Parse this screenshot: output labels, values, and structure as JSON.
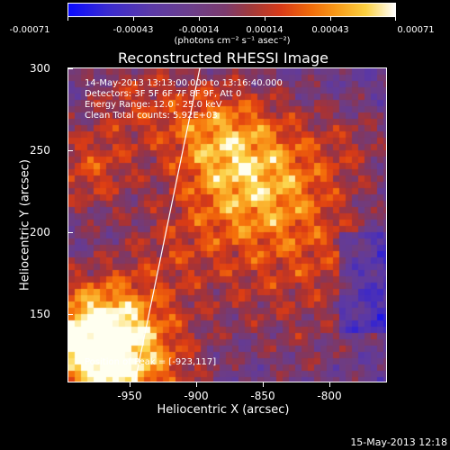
{
  "colorbar": {
    "tick_labels": [
      "-0.00071",
      "-0.00043",
      "-0.00014",
      "0.00014",
      "0.00043",
      "0.00071"
    ],
    "units": "(photons cm⁻² s⁻¹ asec⁻²)"
  },
  "annotations": {
    "line1": "14-May-2013 13:13:00.000 to 13:16:40.000",
    "line2": "Detectors: 3F 5F 6F 7F 8F 9F, Att 0",
    "line3": "Energy Range: 12.0 - 25.0 keV",
    "line4": "Clean     Total counts: 5.92E+03",
    "position": "Position of Peak = [-923,117]"
  },
  "timestamp": "15-May-2013 12:18",
  "chart_data": {
    "type": "heatmap",
    "title": "Reconstructed RHESSI Image",
    "xlabel": "Heliocentric X (arcsec)",
    "ylabel": "Heliocentric Y (arcsec)",
    "xlim": [
      -975,
      -788
    ],
    "ylim": [
      107,
      300
    ],
    "x_ticks": [
      "-950",
      "-900",
      "-850",
      "-800"
    ],
    "y_ticks": [
      "150",
      "200",
      "250",
      "300"
    ],
    "zlim": [
      -0.00071,
      0.00071
    ],
    "colormap": "rhessi (blue-purple-red-orange-yellow-white)",
    "peak_position": [
      -923,
      117
    ],
    "grid": false
  }
}
